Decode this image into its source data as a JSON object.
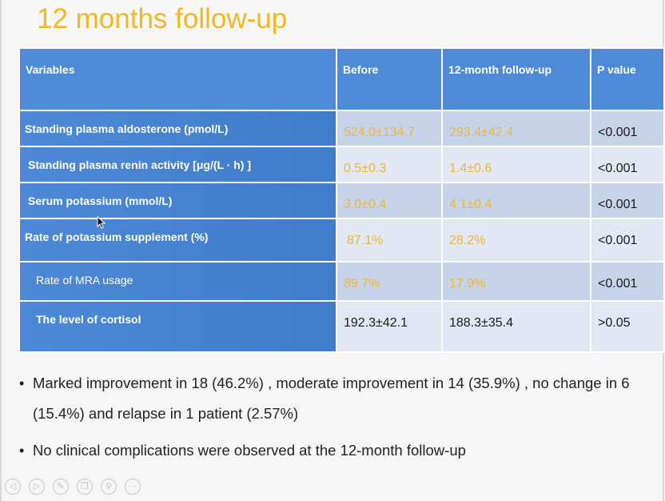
{
  "slide": {
    "title": "12 months follow-up"
  },
  "table": {
    "headers": [
      "Variables",
      "Before",
      "12-month follow-up",
      "P value"
    ],
    "rows": [
      {
        "variable": "Standing plasma aldosterone (pmol/L)",
        "before": "524.0±134.7",
        "followup": "293.4±42.4",
        "p": "<0.001"
      },
      {
        "variable": "Standing plasma renin activity [μg/(L · h) ]",
        "before": "0.5±0.3",
        "followup": "1.4±0.6",
        "p": "<0.001"
      },
      {
        "variable": "Serum potassium (mmol/L)",
        "before": "3.0±0.4",
        "followup": "4.1±0.4",
        "p": "<0.001"
      },
      {
        "variable": "Rate of potassium supplement (%)",
        "before": "87.1%",
        "followup": "28.2%",
        "p": "<0.001"
      },
      {
        "variable": "Rate of MRA usage",
        "before": "89.7%",
        "followup": "17.9%",
        "p": "<0.001"
      },
      {
        "variable": "The level of cortisol",
        "before": "192.3±42.1",
        "followup": "188.3±35.4",
        "p": ">0.05"
      }
    ]
  },
  "bullets": [
    "Marked improvement  in 18 (46.2%) , moderate improvement in 14 (35.9%) , no change in 6 (15.4%) and relapse in 1 patient (2.57%)",
    "No clinical complications were observed at the 12-month follow-up"
  ],
  "toolbar": {
    "icons": [
      "previous-icon",
      "next-icon",
      "pen-icon",
      "copy-icon",
      "zoom-icon",
      "more-icon"
    ],
    "glyphs": [
      "◁",
      "▷",
      "✎",
      "❐",
      "⚲",
      "⋯"
    ]
  },
  "colors": {
    "title": "#f2b824",
    "header_bg": "#4e8ad6",
    "variable_bg": "#3f7cc9",
    "highlight_value": "#e8b640"
  }
}
